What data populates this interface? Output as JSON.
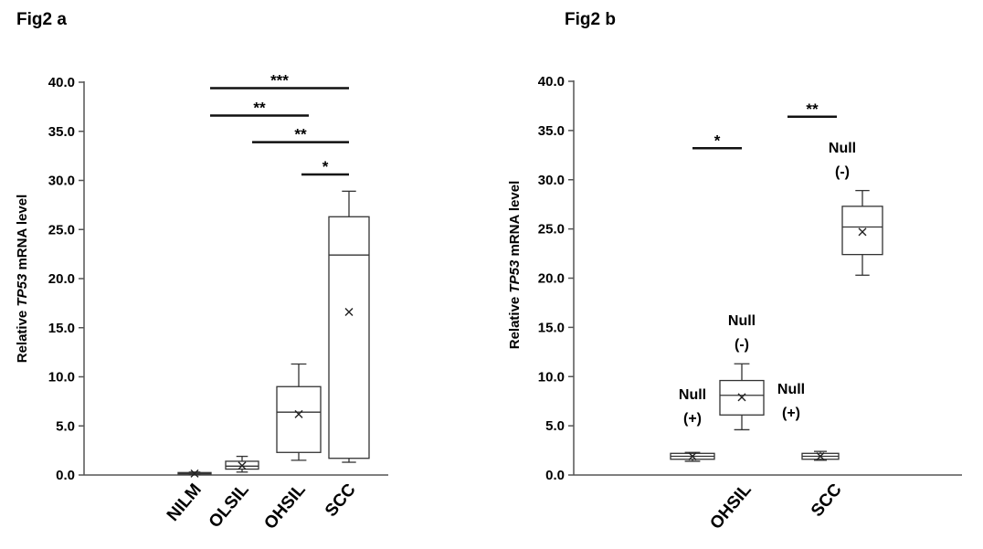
{
  "chart_data": [
    {
      "type": "box",
      "title": "Fig2 a",
      "ylabel": {
        "prefix": "Relative ",
        "italic": "TP53",
        "suffix": " mRNA  level"
      },
      "ylim": [
        0,
        40
      ],
      "yticks": [
        "0.0",
        "5.0",
        "10.0",
        "15.0",
        "20.0",
        "25.0",
        "30.0",
        "35.0",
        "40.0"
      ],
      "categories": [
        "NILM",
        "OLSIL",
        "OHSIL",
        "SCC"
      ],
      "boxes": [
        {
          "category": "NILM",
          "min": 0.05,
          "q1": 0.1,
          "median": 0.15,
          "q3": 0.25,
          "max": 0.3,
          "mean": 0.15
        },
        {
          "category": "OLSIL",
          "min": 0.3,
          "q1": 0.6,
          "median": 0.9,
          "q3": 1.4,
          "max": 1.9,
          "mean": 0.95
        },
        {
          "category": "OHSIL",
          "min": 1.5,
          "q1": 2.3,
          "median": 6.4,
          "q3": 9.0,
          "max": 11.3,
          "mean": 6.2
        },
        {
          "category": "SCC",
          "min": 1.3,
          "q1": 1.7,
          "median": 22.4,
          "q3": 26.3,
          "max": 28.9,
          "mean": 16.6
        }
      ],
      "significance": [
        {
          "from": "NILM",
          "to": "SCC",
          "y": 39.4,
          "label": "***"
        },
        {
          "from": "NILM",
          "to": "OHSIL",
          "y": 36.6,
          "label": "**"
        },
        {
          "from": "OLSIL",
          "to": "SCC",
          "y": 33.9,
          "label": "**"
        },
        {
          "from": "OHSIL",
          "to": "SCC",
          "y": 30.6,
          "label": "*"
        }
      ]
    },
    {
      "type": "box",
      "title": "Fig2 b",
      "ylabel": {
        "prefix": "Relative ",
        "italic": "TP53",
        "suffix": " mRNA  level"
      },
      "ylim": [
        0,
        40
      ],
      "yticks": [
        "0.0",
        "5.0",
        "10.0",
        "15.0",
        "20.0",
        "25.0",
        "30.0",
        "35.0",
        "40.0"
      ],
      "categories": [
        "OHSIL",
        "SCC"
      ],
      "boxes": [
        {
          "category": "OHSIL",
          "subgroup": "Null (+)",
          "min": 1.4,
          "q1": 1.6,
          "median": 1.9,
          "q3": 2.2,
          "max": 2.3,
          "mean": 1.9
        },
        {
          "category": "OHSIL",
          "subgroup": "Null (-)",
          "min": 4.6,
          "q1": 6.1,
          "median": 8.1,
          "q3": 9.6,
          "max": 11.3,
          "mean": 7.9
        },
        {
          "category": "SCC",
          "subgroup": "Null (+)",
          "min": 1.5,
          "q1": 1.6,
          "median": 1.9,
          "q3": 2.2,
          "max": 2.4,
          "mean": 1.9
        },
        {
          "category": "SCC",
          "subgroup": "Null (-)",
          "min": 20.3,
          "q1": 22.4,
          "median": 25.2,
          "q3": 27.3,
          "max": 28.9,
          "mean": 24.7
        }
      ],
      "annotations": [
        {
          "line1": "Null",
          "line2": "(+)"
        },
        {
          "line1": "Null",
          "line2": "(-)"
        },
        {
          "line1": "Null",
          "line2": "(+)"
        },
        {
          "line1": "Null",
          "line2": "(-)"
        }
      ],
      "significance": [
        {
          "category": "OHSIL",
          "y": 33.2,
          "label": "*"
        },
        {
          "category": "SCC",
          "y": 36.4,
          "label": "**"
        }
      ]
    }
  ]
}
